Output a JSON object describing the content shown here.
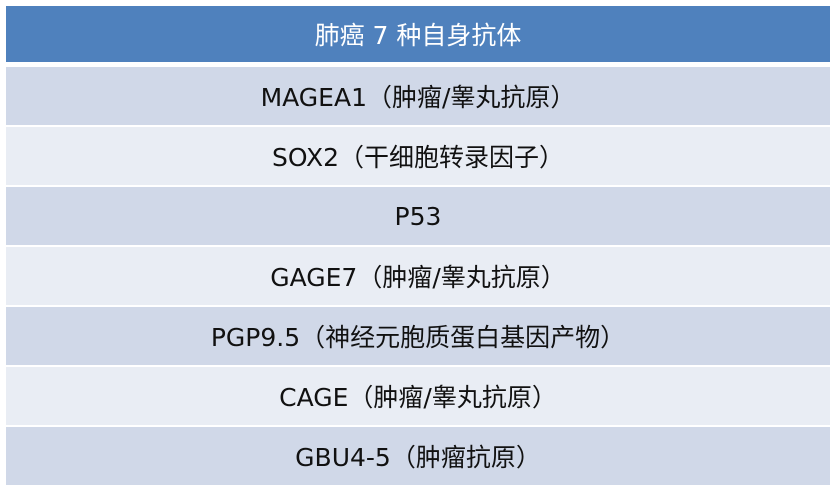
{
  "table": {
    "header": "肺癌 7 种自身抗体",
    "rows": [
      "MAGEA1（肿瘤/睾丸抗原）",
      "SOX2（干细胞转录因子）",
      "P53",
      "GAGE7（肿瘤/睾丸抗原）",
      "PGP9.5（神经元胞质蛋白基因产物）",
      "CAGE（肿瘤/睾丸抗原）",
      "GBU4-5（肿瘤抗原）"
    ]
  },
  "colors": {
    "header": "#4f81bd",
    "row_odd": "#d0d8e8",
    "row_even": "#e9edf4"
  }
}
